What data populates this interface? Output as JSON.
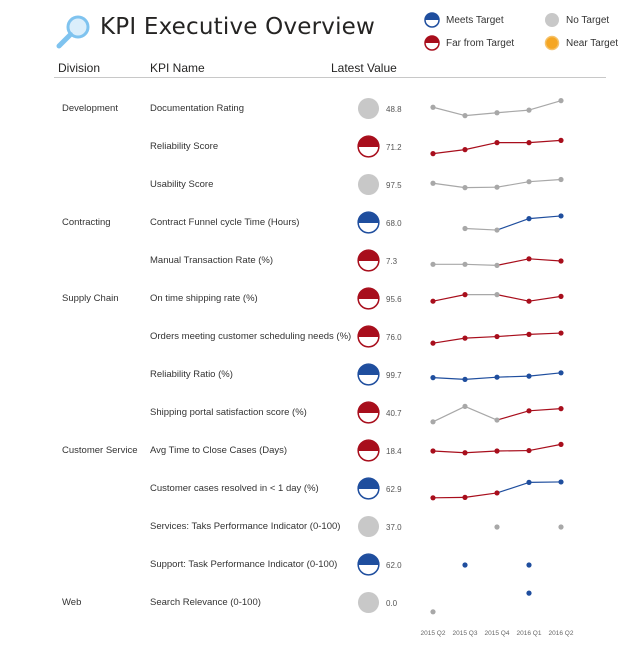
{
  "header": {
    "title": "KPI Executive Overview",
    "icon": "magnifier-icon"
  },
  "legend": [
    {
      "label": "Meets Target",
      "status": "meets"
    },
    {
      "label": "No Target",
      "status": "none"
    },
    {
      "label": "Far from Target",
      "status": "far"
    },
    {
      "label": "Near Target",
      "status": "near"
    }
  ],
  "colors": {
    "meets": "#1f4e9e",
    "far": "#a80e1c",
    "none": "#c8c8c8",
    "near": "#f5a623",
    "line_none": "#a8a8a8"
  },
  "columns": {
    "division": "Division",
    "kpi_name": "KPI Name",
    "latest_value": "Latest Value"
  },
  "periods": [
    "2015 Q2",
    "2015 Q3",
    "2015 Q4",
    "2016 Q1",
    "2016 Q2"
  ],
  "rows": [
    {
      "division": "Development",
      "kpi": "Documentation Rating",
      "status": "none",
      "value": "48.8",
      "trend": [
        {
          "v": 58,
          "s": "none"
        },
        {
          "v": 20,
          "s": "none"
        },
        {
          "v": 33,
          "s": "none"
        },
        {
          "v": 45,
          "s": "none"
        },
        {
          "v": 88,
          "s": "none"
        }
      ]
    },
    {
      "division": "",
      "kpi": "Reliability Score",
      "status": "far",
      "value": "71.2",
      "trend": [
        {
          "v": 20,
          "s": "far"
        },
        {
          "v": 38,
          "s": "far"
        },
        {
          "v": 70,
          "s": "far"
        },
        {
          "v": 70,
          "s": "far"
        },
        {
          "v": 80,
          "s": "far"
        }
      ]
    },
    {
      "division": "",
      "kpi": "Usability Score",
      "status": "none",
      "value": "97.5",
      "trend": [
        {
          "v": 58,
          "s": "none"
        },
        {
          "v": 38,
          "s": "none"
        },
        {
          "v": 40,
          "s": "none"
        },
        {
          "v": 65,
          "s": "none"
        },
        {
          "v": 75,
          "s": "none"
        }
      ]
    },
    {
      "division": "Contracting",
      "kpi": "Contract Funnel cycle Time (Hours)",
      "status": "meets",
      "value": "68.0",
      "trend": [
        null,
        {
          "v": 25,
          "s": "none"
        },
        {
          "v": 18,
          "s": "none"
        },
        {
          "v": 70,
          "s": "meets"
        },
        {
          "v": 82,
          "s": "meets"
        }
      ]
    },
    {
      "division": "",
      "kpi": "Manual Transaction Rate (%)",
      "status": "far",
      "value": "7.3",
      "trend": [
        {
          "v": 35,
          "s": "none"
        },
        {
          "v": 35,
          "s": "none"
        },
        {
          "v": 30,
          "s": "none"
        },
        {
          "v": 60,
          "s": "far"
        },
        {
          "v": 50,
          "s": "far"
        }
      ]
    },
    {
      "division": "Supply Chain",
      "kpi": "On time shipping rate (%)",
      "status": "far",
      "value": "95.6",
      "trend": [
        {
          "v": 40,
          "s": "far"
        },
        {
          "v": 70,
          "s": "far"
        },
        {
          "v": 70,
          "s": "none"
        },
        {
          "v": 40,
          "s": "far"
        },
        {
          "v": 62,
          "s": "far"
        }
      ]
    },
    {
      "division": "",
      "kpi": "Orders meeting customer scheduling needs (%)",
      "status": "far",
      "value": "76.0",
      "trend": [
        {
          "v": 22,
          "s": "far"
        },
        {
          "v": 45,
          "s": "far"
        },
        {
          "v": 52,
          "s": "far"
        },
        {
          "v": 62,
          "s": "far"
        },
        {
          "v": 68,
          "s": "far"
        }
      ]
    },
    {
      "division": "",
      "kpi": "Reliability Ratio (%)",
      "status": "meets",
      "value": "99.7",
      "trend": [
        {
          "v": 38,
          "s": "meets"
        },
        {
          "v": 30,
          "s": "meets"
        },
        {
          "v": 40,
          "s": "meets"
        },
        {
          "v": 45,
          "s": "meets"
        },
        {
          "v": 60,
          "s": "meets"
        }
      ]
    },
    {
      "division": "",
      "kpi": "Shipping portal satisfaction score (%)",
      "status": "far",
      "value": "40.7",
      "trend": [
        {
          "v": 10,
          "s": "none"
        },
        {
          "v": 80,
          "s": "none"
        },
        {
          "v": 18,
          "s": "none"
        },
        {
          "v": 60,
          "s": "far"
        },
        {
          "v": 70,
          "s": "far"
        }
      ]
    },
    {
      "division": "Customer Service",
      "kpi": "Avg Time to Close Cases (Days)",
      "status": "far",
      "value": "18.4",
      "trend": [
        {
          "v": 50,
          "s": "far"
        },
        {
          "v": 42,
          "s": "far"
        },
        {
          "v": 50,
          "s": "far"
        },
        {
          "v": 52,
          "s": "far"
        },
        {
          "v": 80,
          "s": "far"
        }
      ]
    },
    {
      "division": "",
      "kpi": "Customer cases resolved in < 1 day (%)",
      "status": "meets",
      "value": "62.9",
      "trend": [
        {
          "v": 10,
          "s": "far"
        },
        {
          "v": 12,
          "s": "far"
        },
        {
          "v": 32,
          "s": "far"
        },
        {
          "v": 80,
          "s": "meets"
        },
        {
          "v": 82,
          "s": "meets"
        }
      ]
    },
    {
      "division": "",
      "kpi": "Services: Taks Performance Indicator (0-100)",
      "status": "none",
      "value": "37.0",
      "trend": [
        null,
        null,
        {
          "v": 50,
          "s": "none"
        },
        null,
        {
          "v": 50,
          "s": "none"
        }
      ]
    },
    {
      "division": "",
      "kpi": "Support: Task Performance Indicator (0-100)",
      "status": "meets",
      "value": "62.0",
      "trend": [
        null,
        {
          "v": 50,
          "s": "meets"
        },
        null,
        {
          "v": 50,
          "s": "meets"
        },
        null
      ]
    },
    {
      "division": "Web",
      "kpi": "Search Relevance (0-100)",
      "status": "none",
      "value": "0.0",
      "trend": [
        {
          "v": 10,
          "s": "none"
        },
        null,
        null,
        {
          "v": 95,
          "s": "meets"
        },
        null
      ]
    }
  ]
}
